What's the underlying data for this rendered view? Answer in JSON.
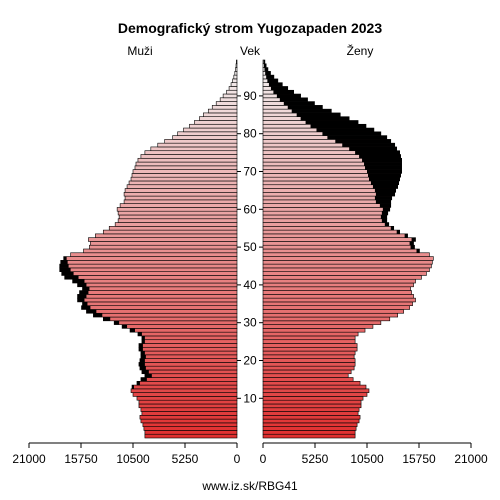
{
  "chart_data": {
    "type": "bar",
    "title": "Demografický strom Yugozapaden 2023",
    "left_label": "Muži",
    "center_label": "Vek",
    "right_label": "Ženy",
    "footer": "www.iz.sk/RBG41",
    "x_ticks": [
      "21000",
      "15750",
      "10500",
      "5250",
      "0",
      "0",
      "5250",
      "10500",
      "15750",
      "21000"
    ],
    "age_ticks": [
      "10",
      "20",
      "30",
      "40",
      "50",
      "60",
      "70",
      "80",
      "90"
    ],
    "xlim": [
      0,
      21000
    ],
    "age_range": [
      0,
      100
    ],
    "colors": {
      "young": "#e03030",
      "old": "#f2f2f2",
      "excess": "#000000",
      "outline": "#000000"
    },
    "male": [
      9300,
      9300,
      9400,
      9500,
      9700,
      9800,
      9600,
      9700,
      9900,
      9900,
      10100,
      10500,
      10700,
      10600,
      10100,
      9700,
      9300,
      9600,
      9800,
      9900,
      9800,
      9700,
      9700,
      9900,
      9900,
      9600,
      9600,
      10000,
      10800,
      11600,
      12400,
      13500,
      14500,
      15200,
      15700,
      15600,
      16100,
      16100,
      15900,
      15600,
      16100,
      16600,
      17400,
      17700,
      17900,
      17900,
      17800,
      17500,
      16800,
      15500,
      14900,
      14800,
      15000,
      14300,
      13500,
      12900,
      12300,
      12000,
      11900,
      12000,
      12100,
      11800,
      11400,
      11300,
      11400,
      11300,
      11100,
      10900,
      10700,
      10600,
      10500,
      10300,
      10200,
      10000,
      9700,
      9300,
      8700,
      8000,
      7300,
      6500,
      6000,
      5400,
      4800,
      4300,
      3800,
      3400,
      2900,
      2500,
      2100,
      1700,
      1400,
      1050,
      800,
      600,
      440,
      320,
      220,
      150,
      100,
      60
    ],
    "female": [
      9300,
      9300,
      9400,
      9500,
      9700,
      9800,
      9600,
      9700,
      9900,
      9900,
      10100,
      10500,
      10700,
      10400,
      9800,
      9100,
      8600,
      8900,
      9200,
      9300,
      9300,
      9200,
      9300,
      9500,
      9500,
      9300,
      9300,
      9600,
      10300,
      11100,
      11900,
      12800,
      13600,
      14200,
      14800,
      15100,
      15400,
      15200,
      15000,
      14900,
      15200,
      15400,
      16000,
      16500,
      16800,
      17000,
      17100,
      17200,
      16800,
      15800,
      15300,
      15200,
      15400,
      14600,
      13800,
      13200,
      12700,
      12500,
      12500,
      12600,
      12800,
      12900,
      12900,
      13000,
      13300,
      13400,
      13600,
      13700,
      13800,
      13900,
      14000,
      14000,
      14000,
      14000,
      13900,
      13800,
      13500,
      13300,
      12900,
      12500,
      11900,
      11200,
      10400,
      9600,
      8700,
      7800,
      6900,
      6000,
      5200,
      4500,
      3800,
      3100,
      2500,
      1950,
      1500,
      1100,
      760,
      500,
      320,
      190
    ]
  }
}
